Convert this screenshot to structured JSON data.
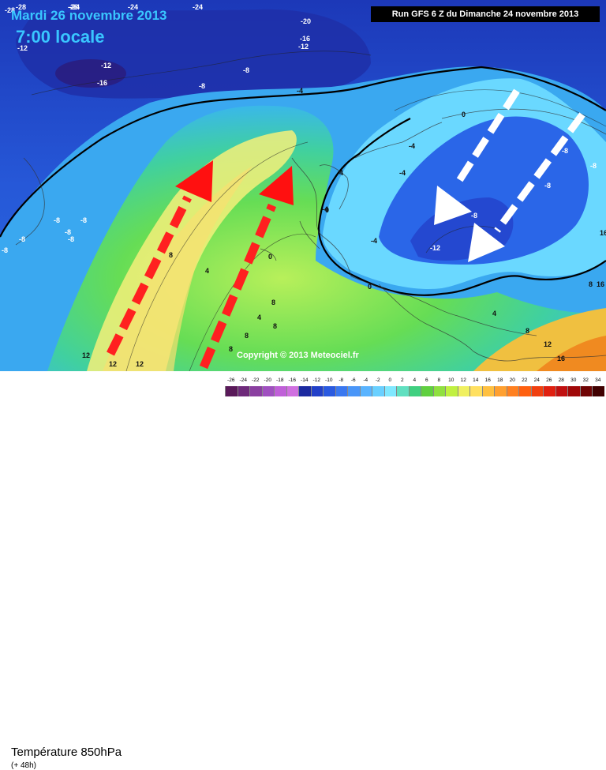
{
  "header": {
    "date": "Mardi 26 novembre 2013",
    "time": "7:00 locale",
    "run": "Run GFS 6 Z du Dimanche 24 novembre 2013"
  },
  "copyright": "Copyright © 2013 Meteociel.fr",
  "footer": {
    "parameter": "Température 850hPa",
    "lead_time": "(+ 48h)"
  },
  "legend": {
    "ticks": [
      "-26",
      "-24",
      "-22",
      "-20",
      "-18",
      "-16",
      "-14",
      "-12",
      "-10",
      "-8",
      "-6",
      "-4",
      "-2",
      "0",
      "2",
      "4",
      "6",
      "8",
      "10",
      "12",
      "14",
      "16",
      "18",
      "20",
      "22",
      "24",
      "26",
      "28",
      "30",
      "32",
      "34"
    ],
    "colors": [
      "#5a1a5a",
      "#6e2a7a",
      "#8a3fa0",
      "#a050c0",
      "#c060d8",
      "#d070e0",
      "#1c2aa0",
      "#2240c8",
      "#2a5ae0",
      "#3a78f0",
      "#4a96f8",
      "#5ab4ff",
      "#6ad0ff",
      "#80e8ff",
      "#60e0c0",
      "#40d080",
      "#60d040",
      "#90e040",
      "#c0f040",
      "#f0f060",
      "#ffe060",
      "#ffc040",
      "#ffa030",
      "#ff8020",
      "#ff6010",
      "#f04010",
      "#e02010",
      "#c01010",
      "#a00808",
      "#700404",
      "#400000"
    ]
  },
  "map_labels": {
    "isotherms": [
      {
        "text": "-28"
      },
      {
        "text": "-24"
      },
      {
        "text": "-28"
      },
      {
        "text": "-24"
      },
      {
        "text": "-20"
      },
      {
        "text": "-16"
      },
      {
        "text": "-12"
      },
      {
        "text": "-16"
      },
      {
        "text": "-12"
      },
      {
        "text": "-8"
      },
      {
        "text": "-8"
      },
      {
        "text": "-4"
      },
      {
        "text": "-8"
      },
      {
        "text": "-8"
      },
      {
        "text": "-8"
      },
      {
        "text": "-8"
      },
      {
        "text": "-8"
      },
      {
        "text": "-8"
      },
      {
        "text": "-4"
      },
      {
        "text": "0"
      },
      {
        "text": "-4"
      },
      {
        "text": "-4"
      },
      {
        "text": "-8"
      },
      {
        "text": "-4"
      },
      {
        "text": "0"
      },
      {
        "text": "4"
      },
      {
        "text": "0"
      },
      {
        "text": "-8"
      },
      {
        "text": "-8"
      },
      {
        "text": "-12"
      },
      {
        "text": "-8"
      },
      {
        "text": "0"
      },
      {
        "text": "4"
      },
      {
        "text": "8"
      },
      {
        "text": "8"
      },
      {
        "text": "8"
      },
      {
        "text": "4"
      },
      {
        "text": "4"
      },
      {
        "text": "8"
      },
      {
        "text": "8"
      },
      {
        "text": "12"
      },
      {
        "text": "12"
      },
      {
        "text": "12"
      },
      {
        "text": "16"
      },
      {
        "text": "12"
      },
      {
        "text": "8"
      },
      {
        "text": "8"
      },
      {
        "text": "16"
      },
      {
        "text": "-28"
      },
      {
        "text": "-24"
      },
      {
        "text": "16"
      },
      {
        "text": "-12"
      }
    ]
  }
}
